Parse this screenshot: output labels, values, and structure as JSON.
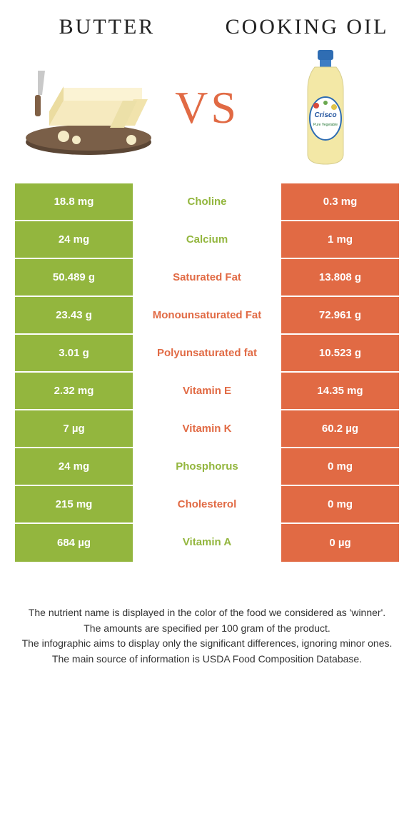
{
  "colors": {
    "butter": "#93b63e",
    "oil": "#e16a44",
    "background": "#ffffff"
  },
  "header": {
    "left_title": "Butter",
    "right_title": "Cooking oil",
    "vs": "VS"
  },
  "rows": [
    {
      "left": "18.8 mg",
      "label": "Choline",
      "right": "0.3 mg",
      "winner": "butter"
    },
    {
      "left": "24 mg",
      "label": "Calcium",
      "right": "1 mg",
      "winner": "butter"
    },
    {
      "left": "50.489 g",
      "label": "Saturated Fat",
      "right": "13.808 g",
      "winner": "oil"
    },
    {
      "left": "23.43 g",
      "label": "Monounsaturated Fat",
      "right": "72.961 g",
      "winner": "oil"
    },
    {
      "left": "3.01 g",
      "label": "Polyunsaturated fat",
      "right": "10.523 g",
      "winner": "oil"
    },
    {
      "left": "2.32 mg",
      "label": "Vitamin E",
      "right": "14.35 mg",
      "winner": "oil"
    },
    {
      "left": "7 µg",
      "label": "Vitamin K",
      "right": "60.2 µg",
      "winner": "oil"
    },
    {
      "left": "24 mg",
      "label": "Phosphorus",
      "right": "0 mg",
      "winner": "butter"
    },
    {
      "left": "215 mg",
      "label": "Cholesterol",
      "right": "0 mg",
      "winner": "oil"
    },
    {
      "left": "684 µg",
      "label": "Vitamin A",
      "right": "0 µg",
      "winner": "butter"
    }
  ],
  "footer": {
    "line1": "The nutrient name is displayed in the color of the food we considered as 'winner'.",
    "line2": "The amounts are specified per 100 gram of the product.",
    "line3": "The infographic aims to display only the significant differences, ignoring minor ones.",
    "line4": "The main source of information is USDA Food Composition Database."
  }
}
